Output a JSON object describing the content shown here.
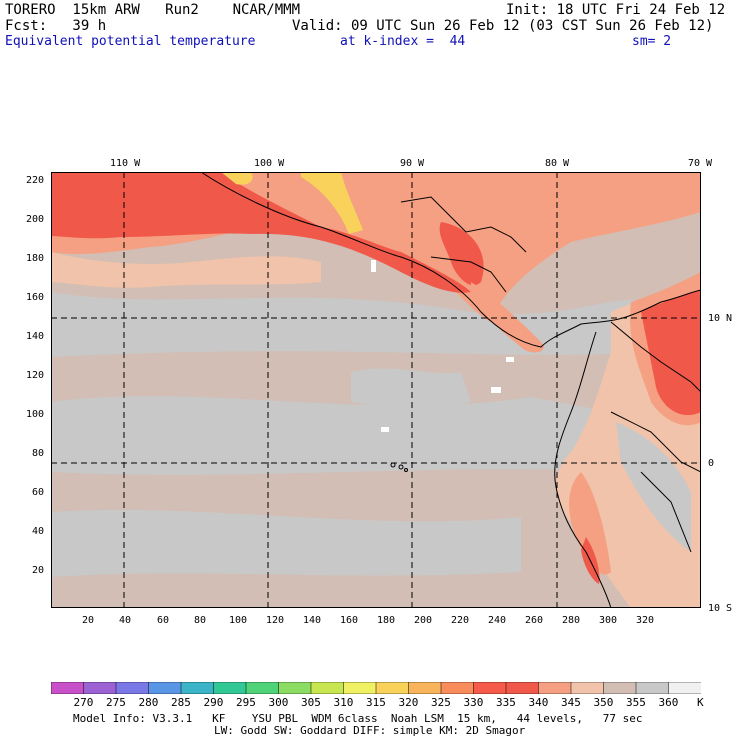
{
  "header": {
    "line1_left": "TORERO  15km ARW   Run2    NCAR/MMM",
    "line1_right": "Init: 18 UTC Fri 24 Feb 12",
    "line2_left": "Fcst:   39 h",
    "line2_right": "Valid: 09 UTC Sun 26 Feb 12 (03 CST Sun 26 Feb 12)",
    "field": "Equivalent potential temperature",
    "level": "at k-index =  44",
    "smoothing": "sm= 2"
  },
  "map": {
    "top_lon_labels": [
      "110 W",
      "100 W",
      "90 W",
      "80 W",
      "70 W"
    ],
    "right_lat_labels": [
      "10 N",
      "0",
      "10 S"
    ],
    "y_ticks": [
      "220",
      "200",
      "180",
      "160",
      "140",
      "120",
      "100",
      "80",
      "60",
      "40",
      "20"
    ],
    "x_ticks": [
      "20",
      "40",
      "60",
      "80",
      "100",
      "120",
      "140",
      "160",
      "180",
      "200",
      "220",
      "240",
      "260",
      "280",
      "300",
      "320"
    ]
  },
  "colorbar": {
    "labels": [
      "270",
      "275",
      "280",
      "285",
      "290",
      "295",
      "300",
      "305",
      "310",
      "315",
      "320",
      "325",
      "330",
      "335",
      "340",
      "345",
      "350",
      "355",
      "360"
    ],
    "unit": "K",
    "colors": [
      "#c850c8",
      "#9a62d2",
      "#7a78e6",
      "#5a96e6",
      "#3cb4c8",
      "#32c896",
      "#50d278",
      "#8cdc64",
      "#c8e650",
      "#f0f064",
      "#f8d25a",
      "#f8b45a",
      "#f88c5a",
      "#f55a4b",
      "#f0594a",
      "#f5a082",
      "#f0c3aa",
      "#d2beb4",
      "#c8c8c8",
      "#f0f0f0"
    ]
  },
  "colors": {
    "land_dark_red": "#f0594a",
    "salmon": "#f5a082",
    "peach": "#f0c3aa",
    "tan_gray": "#d2beb4",
    "gray": "#c8c8c8",
    "yellow": "#f8d25a",
    "white": "#ffffff"
  },
  "footer": {
    "line1": "Model Info: V3.3.1   KF    YSU PBL  WDM 6class  Noah LSM  15 km,   44 levels,   77 sec",
    "line2": "LW: Godd SW: Goddard DIFF: simple KM: 2D Smagor"
  }
}
